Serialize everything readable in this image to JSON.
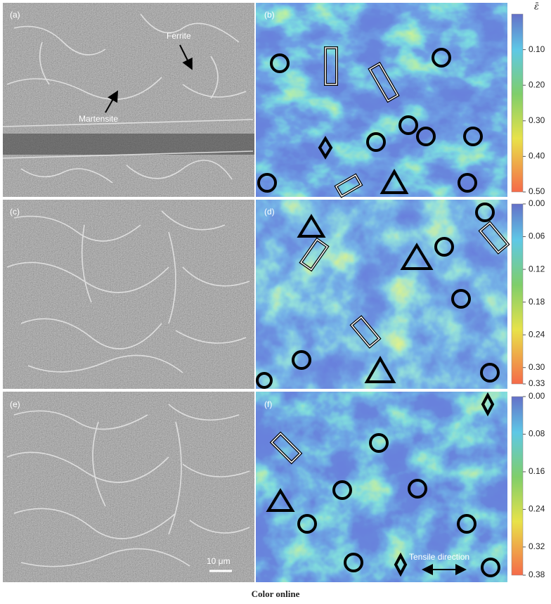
{
  "panels": [
    "(a)",
    "(b)",
    "(c)",
    "(d)",
    "(e)",
    "(f)"
  ],
  "annotations": {
    "ferrite": "Ferrite",
    "martensite": "Martensite",
    "scale_bar": "10 μm",
    "tensile_direction": "Tensile direction"
  },
  "colorbar_symbol": "ε̄",
  "colorbars": [
    {
      "lim": [
        0,
        0.5
      ],
      "ticks": [
        {
          "value": 0.1,
          "label": "0.10"
        },
        {
          "value": 0.2,
          "label": "0.20"
        },
        {
          "value": 0.3,
          "label": "0.30"
        },
        {
          "value": 0.4,
          "label": "0.40"
        },
        {
          "value": 0.5,
          "label": "0.50"
        }
      ]
    },
    {
      "lim": [
        0,
        0.33
      ],
      "ticks": [
        {
          "value": 0,
          "label": "0.00"
        },
        {
          "value": 0.06,
          "label": "0.06"
        },
        {
          "value": 0.12,
          "label": "0.12"
        },
        {
          "value": 0.18,
          "label": "0.18"
        },
        {
          "value": 0.24,
          "label": "0.24"
        },
        {
          "value": 0.3,
          "label": "0.30"
        },
        {
          "value": 0.33,
          "label": "0.33"
        }
      ]
    },
    {
      "lim": [
        0,
        0.38
      ],
      "ticks": [
        {
          "value": 0,
          "label": "0.00"
        },
        {
          "value": 0.08,
          "label": "0.08"
        },
        {
          "value": 0.16,
          "label": "0.16"
        },
        {
          "value": 0.24,
          "label": "0.24"
        },
        {
          "value": 0.32,
          "label": "0.32"
        },
        {
          "value": 0.38,
          "label": "0.38"
        }
      ]
    }
  ],
  "caption": "Color online"
}
